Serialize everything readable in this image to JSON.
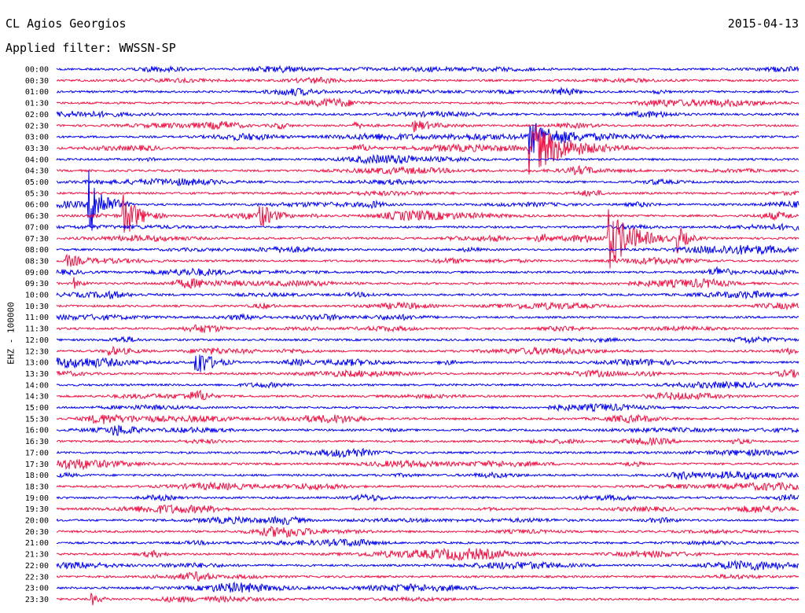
{
  "header": {
    "station": "CL Agios Georgios",
    "date": "2015-04-13",
    "filter": "Applied filter: WWSSN-SP"
  },
  "chart_data": {
    "type": "line",
    "title": "CL Agios Georgios",
    "subtitle": "Applied filter: WWSSN-SP",
    "ylabel": "EHZ - 100000",
    "xlabel": "",
    "grid": false,
    "trace_colors": [
      "#0000ee",
      "#ee1144"
    ],
    "row_labels": [
      "00:00",
      "00:30",
      "01:00",
      "01:30",
      "02:00",
      "02:30",
      "03:00",
      "03:30",
      "04:00",
      "04:30",
      "05:00",
      "05:30",
      "06:00",
      "06:30",
      "07:00",
      "07:30",
      "08:00",
      "08:30",
      "09:00",
      "09:30",
      "10:00",
      "10:30",
      "11:00",
      "11:30",
      "12:00",
      "12:30",
      "13:00",
      "13:30",
      "14:00",
      "14:30",
      "15:00",
      "15:30",
      "16:00",
      "16:30",
      "17:00",
      "17:30",
      "18:00",
      "18:30",
      "19:00",
      "19:30",
      "20:00",
      "20:30",
      "21:00",
      "21:30",
      "22:00",
      "22:30",
      "23:00",
      "23:30"
    ],
    "row_minutes": 30,
    "events": [
      {
        "row": 5,
        "minute": 12.0,
        "amplitude": 4,
        "duration_min": 1.5
      },
      {
        "row": 5,
        "minute": 14.4,
        "amplitude": 8,
        "duration_min": 2.5
      },
      {
        "row": 6,
        "minute": 19.1,
        "amplitude": 22,
        "duration_min": 3.5
      },
      {
        "row": 7,
        "minute": 19.1,
        "amplitude": 34,
        "duration_min": 4.5
      },
      {
        "row": 12,
        "minute": 1.3,
        "amplitude": 42,
        "duration_min": 1.8
      },
      {
        "row": 13,
        "minute": 2.7,
        "amplitude": 32,
        "duration_min": 1.8
      },
      {
        "row": 13,
        "minute": 8.2,
        "amplitude": 14,
        "duration_min": 1.5
      },
      {
        "row": 15,
        "minute": 22.3,
        "amplitude": 40,
        "duration_min": 3.0
      },
      {
        "row": 15,
        "minute": 25.1,
        "amplitude": 18,
        "duration_min": 1.2
      },
      {
        "row": 17,
        "minute": 0.4,
        "amplitude": 8,
        "duration_min": 2.0
      },
      {
        "row": 19,
        "minute": 0.7,
        "amplitude": 7,
        "duration_min": 0.8
      },
      {
        "row": 25,
        "minute": 2.1,
        "amplitude": 6,
        "duration_min": 0.8
      },
      {
        "row": 26,
        "minute": 5.6,
        "amplitude": 22,
        "duration_min": 1.8
      },
      {
        "row": 32,
        "minute": 2.3,
        "amplitude": 5,
        "duration_min": 0.8
      },
      {
        "row": 47,
        "minute": 1.4,
        "amplitude": 8,
        "duration_min": 1.0
      }
    ]
  }
}
